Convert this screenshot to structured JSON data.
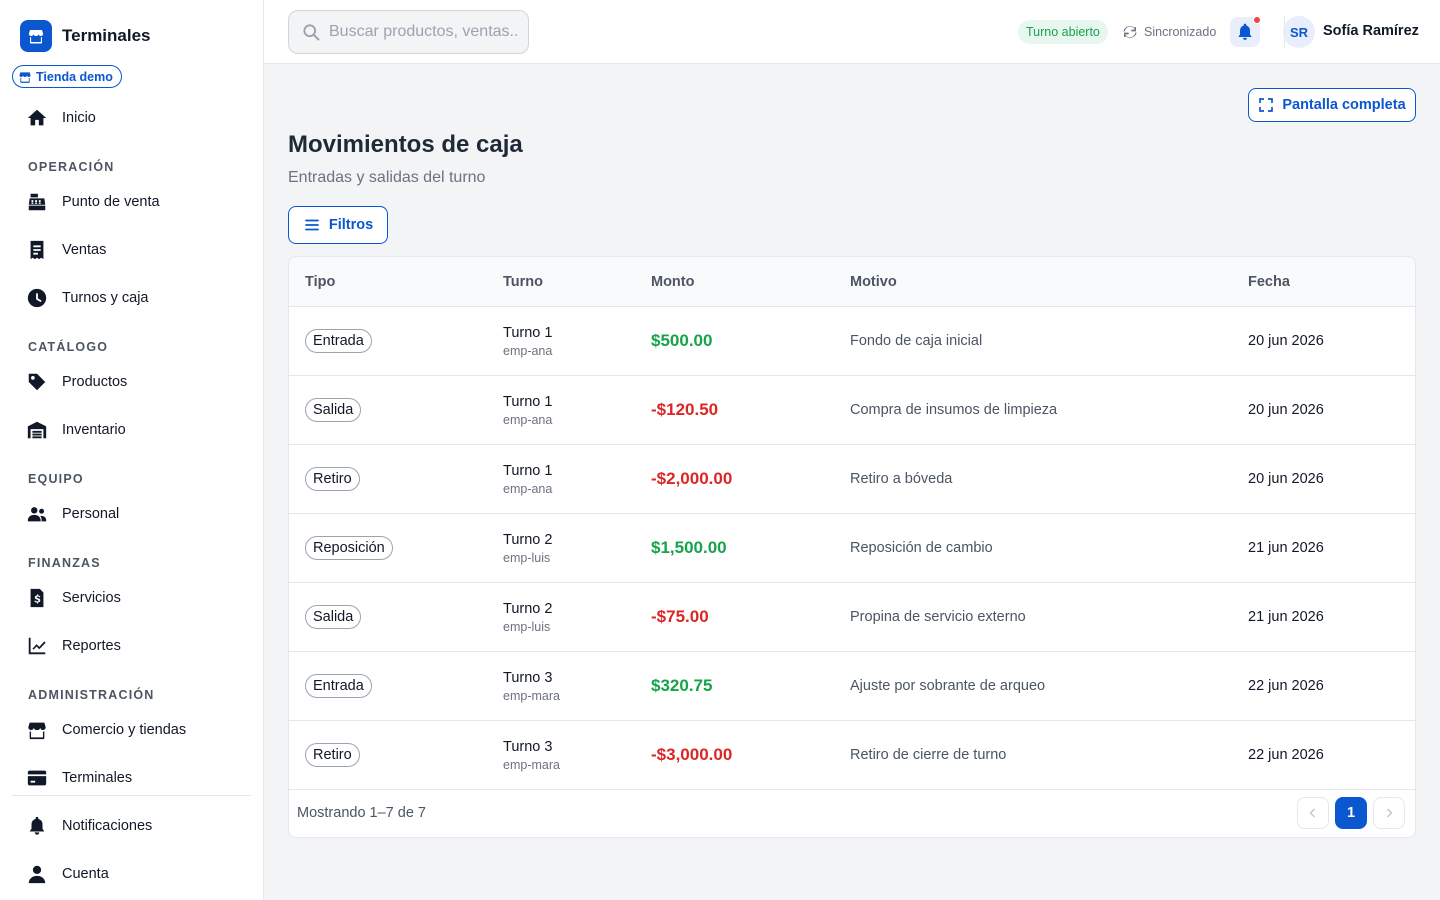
{
  "app": {
    "title": "Terminales",
    "store": "Tienda demo"
  },
  "sidebar": {
    "home": "Inicio",
    "sections": {
      "operacion": "OPERACIÓN",
      "catalogo": "CATÁLOGO",
      "equipo": "EQUIPO",
      "finanzas": "FINANZAS",
      "administracion": "ADMINISTRACIÓN"
    },
    "items": {
      "pos": "Punto de venta",
      "ventas": "Ventas",
      "turnos": "Turnos y caja",
      "productos": "Productos",
      "inventario": "Inventario",
      "personal": "Personal",
      "servicios": "Servicios",
      "reportes": "Reportes",
      "comercio": "Comercio y tiendas",
      "terminales": "Terminales",
      "notificaciones": "Notificaciones",
      "cuenta": "Cuenta"
    }
  },
  "topbar": {
    "search_placeholder": "Buscar productos, ventas...",
    "shift_status": "Turno abierto",
    "sync_status": "Sincronizado",
    "user_initials": "SR",
    "user_name": "Sofía Ramírez"
  },
  "page": {
    "fullscreen_label": "Pantalla completa",
    "title": "Movimientos de caja",
    "subtitle": "Entradas y salidas del turno",
    "filters_label": "Filtros"
  },
  "table": {
    "headers": {
      "tipo": "Tipo",
      "turno": "Turno",
      "monto": "Monto",
      "motivo": "Motivo",
      "fecha": "Fecha"
    },
    "rows": [
      {
        "tipo": "Entrada",
        "turno": "Turno 1",
        "empleado": "emp-ana",
        "monto": "$500.00",
        "motivo": "Fondo de caja inicial",
        "fecha": "20 jun 2026"
      },
      {
        "tipo": "Salida",
        "turno": "Turno 1",
        "empleado": "emp-ana",
        "monto": "-$120.50",
        "motivo": "Compra de insumos de limpieza",
        "fecha": "20 jun 2026"
      },
      {
        "tipo": "Retiro",
        "turno": "Turno 1",
        "empleado": "emp-ana",
        "monto": "-$2,000.00",
        "motivo": "Retiro a bóveda",
        "fecha": "20 jun 2026"
      },
      {
        "tipo": "Reposición",
        "turno": "Turno 2",
        "empleado": "emp-luis",
        "monto": "$1,500.00",
        "motivo": "Reposición de cambio",
        "fecha": "21 jun 2026"
      },
      {
        "tipo": "Salida",
        "turno": "Turno 2",
        "empleado": "emp-luis",
        "monto": "-$75.00",
        "motivo": "Propina de servicio externo",
        "fecha": "21 jun 2026"
      },
      {
        "tipo": "Entrada",
        "turno": "Turno 3",
        "empleado": "emp-mara",
        "monto": "$320.75",
        "motivo": "Ajuste por sobrante de arqueo",
        "fecha": "22 jun 2026"
      },
      {
        "tipo": "Retiro",
        "turno": "Turno 3",
        "empleado": "emp-mara",
        "monto": "-$3,000.00",
        "motivo": "Retiro de cierre de turno",
        "fecha": "22 jun 2026"
      }
    ],
    "footer_text": "Mostrando 1–7 de 7",
    "current_page": "1"
  },
  "colors": {
    "accent": "#0b57d0",
    "positive": "#16a34a",
    "negative": "#dc2626",
    "alert_dot": "#ef4444"
  }
}
